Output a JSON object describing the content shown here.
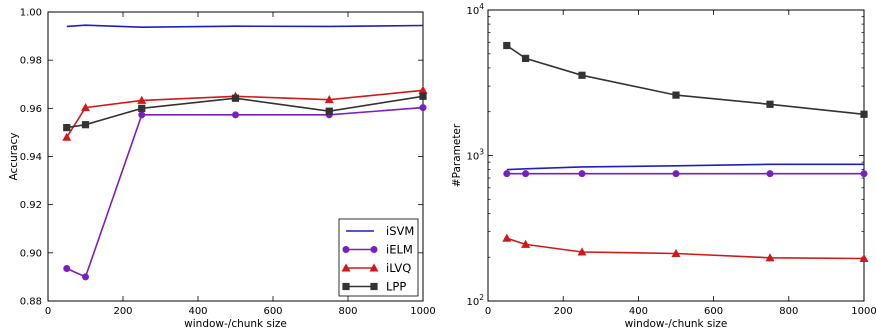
{
  "chart_data": [
    {
      "type": "line",
      "xlabel": "window-/chunk size",
      "ylabel": "Accuracy",
      "xlim": [
        0,
        1000
      ],
      "ylim": [
        0.88,
        1.0
      ],
      "xticks": [
        0,
        200,
        400,
        600,
        800,
        1000
      ],
      "xtick_labels": [
        "0",
        "200",
        "400",
        "600",
        "800",
        "1000"
      ],
      "yticks": [
        0.88,
        0.9,
        0.92,
        0.94,
        0.96,
        0.98,
        1.0
      ],
      "ytick_labels": [
        "0.88",
        "0.90",
        "0.92",
        "0.94",
        "0.96",
        "0.98",
        "1.00"
      ],
      "grid": false,
      "legend": "bottom-right",
      "series": [
        {
          "name": "iSVM",
          "color": "#1f1fbf",
          "marker": "none",
          "x": [
            50,
            100,
            250,
            500,
            750,
            1000
          ],
          "y": [
            0.994,
            0.9945,
            0.9937,
            0.9941,
            0.994,
            0.9944
          ]
        },
        {
          "name": "iELM",
          "color": "#7a1fbf",
          "marker": "circle",
          "x": [
            50,
            100,
            250,
            500,
            750,
            1000
          ],
          "y": [
            0.8935,
            0.89,
            0.9573,
            0.9573,
            0.9573,
            0.9603
          ]
        },
        {
          "name": "iLVQ",
          "color": "#d01a1a",
          "marker": "triangle",
          "x": [
            50,
            100,
            250,
            500,
            750,
            1000
          ],
          "y": [
            0.948,
            0.9603,
            0.9633,
            0.965,
            0.9636,
            0.9675
          ]
        },
        {
          "name": "LPP",
          "color": "#333333",
          "marker": "square",
          "x": [
            50,
            100,
            250,
            500,
            750,
            1000
          ],
          "y": [
            0.952,
            0.9532,
            0.96,
            0.9642,
            0.9588,
            0.965
          ]
        }
      ]
    },
    {
      "type": "line",
      "xlabel": "window-/chunk size",
      "ylabel": "#Parameter",
      "yscale": "log",
      "xlim": [
        0,
        1000
      ],
      "ylim": [
        100,
        10000
      ],
      "xticks": [
        0,
        200,
        400,
        600,
        800,
        1000
      ],
      "xtick_labels": [
        "0",
        "200",
        "400",
        "600",
        "800",
        "1000"
      ],
      "yticks": [
        100,
        1000,
        10000
      ],
      "ytick_labels": [
        [
          "10",
          "2"
        ],
        [
          "10",
          "3"
        ],
        [
          "10",
          "4"
        ]
      ],
      "grid": false,
      "series": [
        {
          "name": "iSVM",
          "color": "#1f1fbf",
          "marker": "none",
          "x": [
            50,
            100,
            250,
            500,
            750,
            1000
          ],
          "y": [
            800,
            810,
            835,
            850,
            870,
            870
          ]
        },
        {
          "name": "iELM",
          "color": "#7a1fbf",
          "marker": "circle",
          "x": [
            50,
            100,
            250,
            500,
            750,
            1000
          ],
          "y": [
            750,
            750,
            750,
            750,
            750,
            750
          ]
        },
        {
          "name": "iLVQ",
          "color": "#d01a1a",
          "marker": "triangle",
          "x": [
            50,
            100,
            250,
            500,
            750,
            1000
          ],
          "y": [
            270,
            245,
            217,
            212,
            198,
            196
          ]
        },
        {
          "name": "LPP",
          "color": "#333333",
          "marker": "square",
          "x": [
            50,
            100,
            250,
            500,
            750,
            1000
          ],
          "y": [
            5700,
            4650,
            3560,
            2600,
            2250,
            1920
          ]
        }
      ]
    }
  ]
}
